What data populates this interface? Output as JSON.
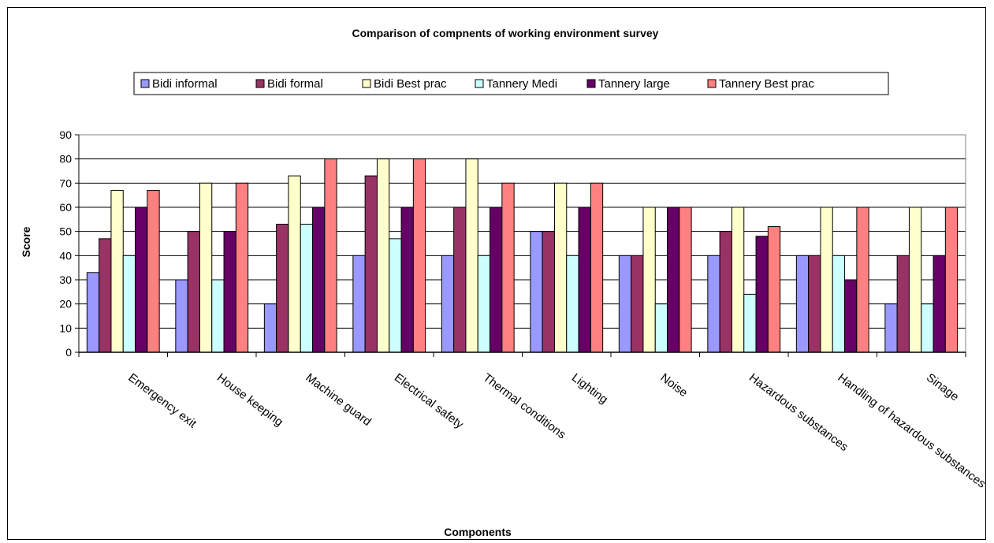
{
  "chart_data": {
    "type": "bar",
    "title": "Comparison of compnents of working environment survey",
    "xlabel": "Components",
    "ylabel": "Score",
    "ylim": [
      0,
      90
    ],
    "yticks": [
      "0",
      "10",
      "20",
      "30",
      "40",
      "50",
      "60",
      "70",
      "80",
      "90"
    ],
    "grid": true,
    "legend_position": "top",
    "categories": [
      "Emergency exit",
      "House keeping",
      "Machine guard",
      "Electrical safety",
      "Thermal conditions",
      "Lighting",
      "Noise",
      "Hazardous substances",
      "Handling of hazardous substances",
      "Sinage"
    ],
    "series": [
      {
        "name": "Bidi informal",
        "color": "#9999FF",
        "values": [
          33,
          30,
          20,
          40,
          40,
          50,
          40,
          40,
          40,
          20
        ]
      },
      {
        "name": "Bidi formal",
        "color": "#993366",
        "values": [
          47,
          50,
          53,
          73,
          60,
          50,
          40,
          50,
          40,
          40
        ]
      },
      {
        "name": "Bidi Best prac",
        "color": "#FFFFCC",
        "values": [
          67,
          70,
          73,
          80,
          80,
          70,
          60,
          60,
          60,
          60
        ]
      },
      {
        "name": "Tannery Medi",
        "color": "#CCFFFF",
        "values": [
          40,
          30,
          53,
          47,
          40,
          40,
          20,
          24,
          40,
          20
        ]
      },
      {
        "name": "Tannery large",
        "color": "#660066",
        "values": [
          60,
          50,
          60,
          60,
          60,
          60,
          60,
          48,
          30,
          40
        ]
      },
      {
        "name": "Tannery Best prac",
        "color": "#FF8080",
        "values": [
          67,
          70,
          80,
          80,
          70,
          70,
          60,
          52,
          60,
          60
        ]
      }
    ]
  }
}
